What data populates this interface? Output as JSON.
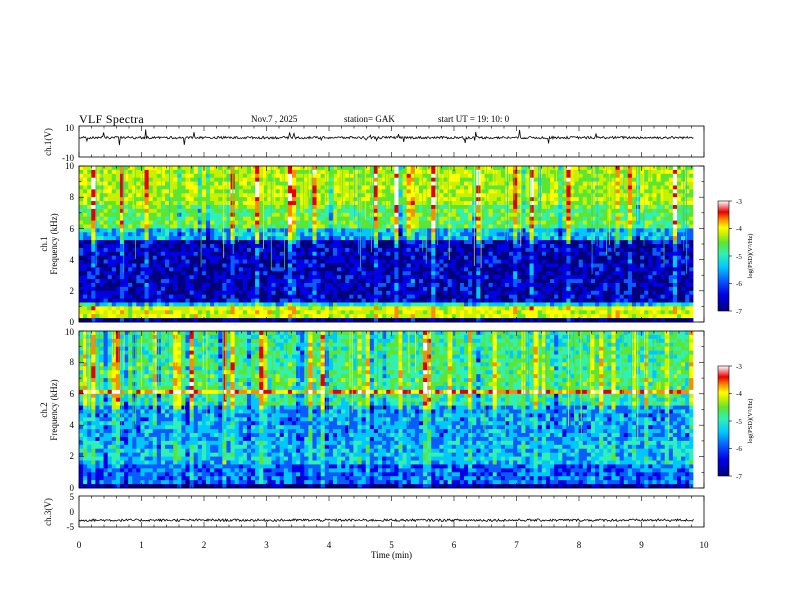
{
  "header": {
    "title": "VLF  Spectra",
    "date": "Nov.7   , 2025",
    "station": "station= GAK",
    "start_ut": "start  UT  =     19: 10: 0"
  },
  "colors": {
    "colormap": [
      "#00007a",
      "#0000e6",
      "#0a5cff",
      "#00c8ff",
      "#32f0b4",
      "#5ae632",
      "#c8f000",
      "#ffff00",
      "#ff8c00",
      "#e60000",
      "#ffffff"
    ],
    "trace": "#000000"
  },
  "chart_data": [
    {
      "id": "ch1-waveform",
      "type": "line",
      "ylabel": "ch.1(V)",
      "ylim": [
        -10,
        10
      ],
      "yticks": [
        "10",
        "-10"
      ],
      "xlim": [
        0,
        10
      ],
      "description_level": 2.5
    },
    {
      "id": "ch1-spectrogram",
      "type": "heatmap",
      "ylabel_line1": "ch.1",
      "ylabel_line2": "Frequency  (kHz)",
      "ylim": [
        0,
        10
      ],
      "yticks": [
        "0",
        "2",
        "4",
        "6",
        "8",
        "10"
      ],
      "xlim": [
        0,
        10
      ],
      "colorbar": {
        "label": "log(PSD)(V²/Hz)",
        "range": [
          -7,
          -3
        ],
        "ticks": [
          "-3",
          "-4",
          "-5",
          "-6",
          "-7"
        ]
      }
    },
    {
      "id": "ch2-spectrogram",
      "type": "heatmap",
      "ylabel_line1": "ch.2",
      "ylabel_line2": "Frequency  (kHz)",
      "ylim": [
        0,
        10
      ],
      "yticks": [
        "0",
        "2",
        "4",
        "6",
        "8",
        "10"
      ],
      "xlim": [
        0,
        10
      ],
      "colorbar": {
        "label": "log(PSD)(V²/Hz)",
        "range": [
          -7,
          -3
        ],
        "ticks": [
          "-3",
          "-4",
          "-5",
          "-6",
          "-7"
        ]
      }
    },
    {
      "id": "ch3-waveform",
      "type": "line",
      "ylabel": "ch.3(V)",
      "ylim": [
        -5,
        5
      ],
      "yticks": [
        "5",
        "0",
        "-5"
      ],
      "xlim": [
        0,
        10
      ],
      "xticks": [
        "0",
        "1",
        "2",
        "3",
        "4",
        "5",
        "6",
        "7",
        "8",
        "9",
        "10"
      ],
      "xlabel": "Time  (min)",
      "description_level": -2.8
    }
  ]
}
